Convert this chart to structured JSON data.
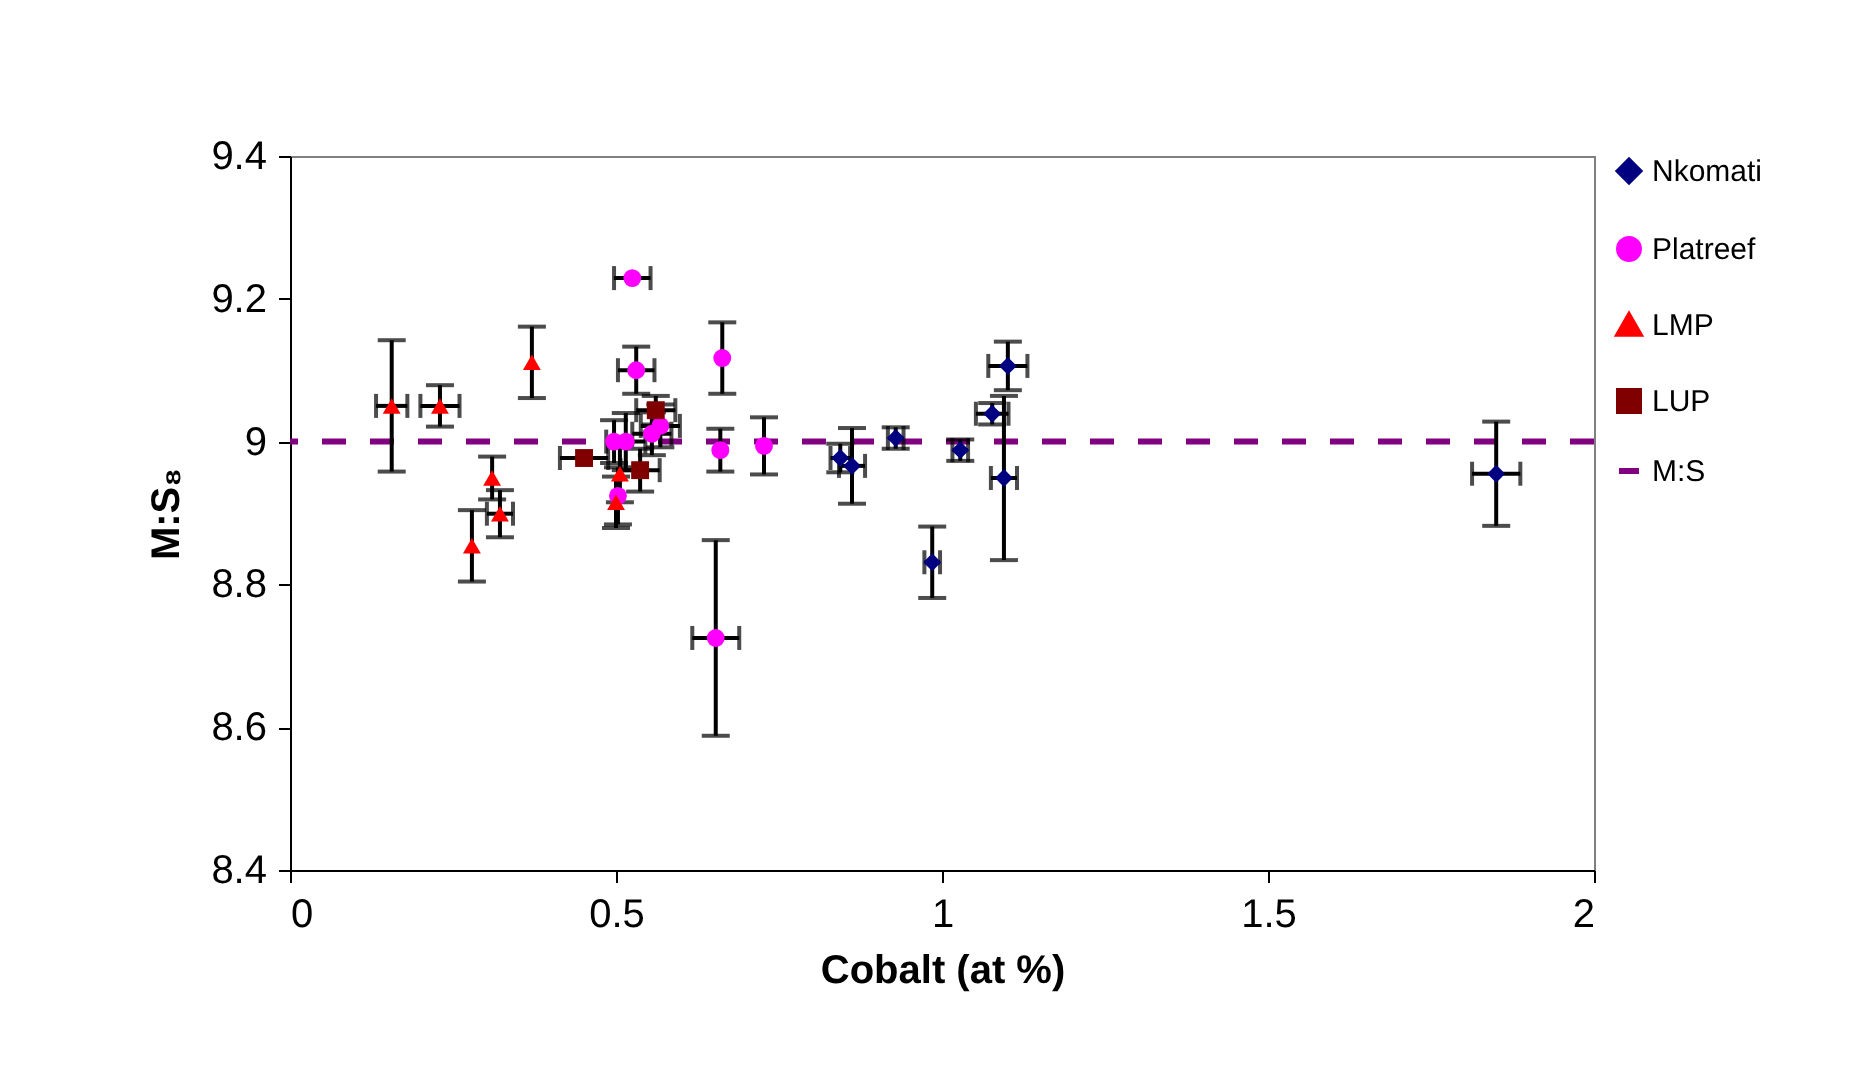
{
  "chart_data": {
    "type": "scatter",
    "xlabel": "Cobalt (at %)",
    "ylabel": "M:S₈",
    "xlim": [
      0,
      2
    ],
    "xticks": [
      0,
      0.5,
      1,
      1.5,
      2
    ],
    "ylim": [
      8.4,
      9.4
    ],
    "yticks": [
      8.4,
      8.6,
      8.8,
      9,
      9.2,
      9.4
    ],
    "grid": false,
    "legend": "right",
    "series": [
      {
        "name": "Nkomati",
        "color": "#000080",
        "marker": "diamond",
        "x": [
          0.844,
          0.862,
          0.929,
          0.985,
          1.028,
          1.077,
          1.101,
          1.095,
          1.85
        ],
        "values": [
          8.977,
          8.966,
          9.005,
          8.831,
          8.988,
          9.039,
          9.106,
          8.949,
          8.955
        ],
        "errors": [
          0.02,
          0.053,
          0.015,
          0.05,
          0.015,
          0.015,
          0.034,
          0.115,
          0.073
        ],
        "xerrors": [
          0.015,
          0.02,
          0.012,
          0.012,
          0.012,
          0.025,
          0.03,
          0.02,
          0.037
        ]
      },
      {
        "name": "Platreef",
        "color": "#ff00ff",
        "marker": "circle",
        "x": [
          0.525,
          0.531,
          0.663,
          0.66,
          0.653,
          0.497,
          0.515,
          0.555,
          0.568,
          0.503,
          0.727
        ],
        "values": [
          9.229,
          9.1,
          9.117,
          8.988,
          8.725,
          9.0,
          9.0,
          9.011,
          9.022,
          8.924,
          8.994
        ],
        "errors": [
          null,
          0.033,
          0.05,
          0.03,
          0.137,
          0.03,
          0.04,
          0.03,
          0.03,
          0.04,
          0.04
        ],
        "xerrors": [
          0.028,
          0.028,
          null,
          null,
          0.036,
          null,
          0.03,
          0.03,
          0.03,
          null,
          null
        ]
      },
      {
        "name": "LMP",
        "color": "#ff0000",
        "marker": "triangle",
        "x": [
          0.156,
          0.23,
          0.371,
          0.31,
          0.322,
          0.279,
          0.506,
          0.5
        ],
        "values": [
          9.05,
          9.05,
          9.111,
          8.949,
          8.899,
          8.854,
          8.955,
          8.915
        ],
        "errors": [
          0.092,
          0.029,
          0.05,
          0.03,
          0.033,
          0.05,
          0.04,
          0.036
        ],
        "xerrors": [
          0.024,
          0.03,
          null,
          null,
          0.02,
          null,
          null,
          null
        ]
      },
      {
        "name": "LUP",
        "color": "#800000",
        "marker": "square",
        "x": [
          0.451,
          0.561,
          0.537
        ],
        "values": [
          8.977,
          9.044,
          8.96
        ],
        "errors": [
          null,
          0.02,
          0.03
        ],
        "xerrors": [
          0.037,
          0.03,
          0.03
        ]
      }
    ],
    "ref_lines": [
      {
        "axis": "y",
        "value": 9,
        "label": "M:S",
        "color": "#800080",
        "line_style": "dashed"
      }
    ]
  }
}
